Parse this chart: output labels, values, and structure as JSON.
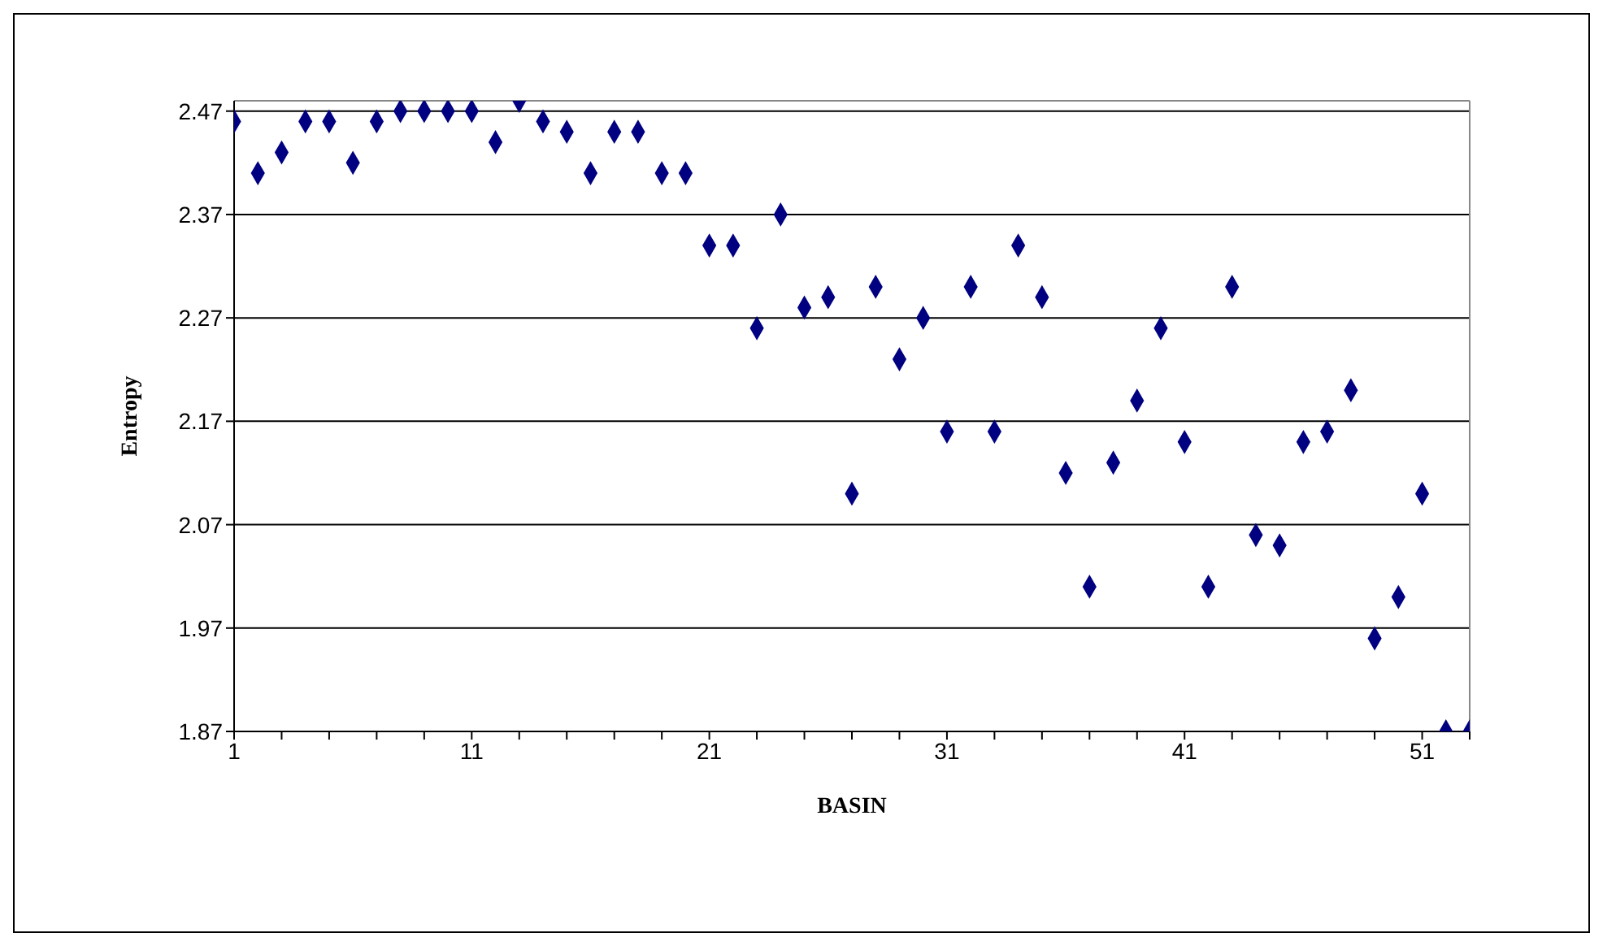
{
  "chart_data": {
    "type": "scatter",
    "xlabel": "BASIN",
    "ylabel": "Entropy",
    "x": [
      1,
      2,
      3,
      4,
      5,
      6,
      7,
      8,
      9,
      10,
      11,
      12,
      13,
      14,
      15,
      16,
      17,
      18,
      19,
      20,
      21,
      22,
      23,
      24,
      25,
      26,
      27,
      28,
      29,
      30,
      31,
      32,
      33,
      34,
      35,
      36,
      37,
      38,
      39,
      40,
      41,
      42,
      43,
      44,
      45,
      46,
      47,
      48,
      49,
      50,
      51,
      52,
      53
    ],
    "values": [
      2.46,
      2.41,
      2.43,
      2.46,
      2.46,
      2.42,
      2.46,
      2.47,
      2.47,
      2.47,
      2.47,
      2.44,
      2.48,
      2.46,
      2.45,
      2.41,
      2.45,
      2.45,
      2.41,
      2.41,
      2.34,
      2.34,
      2.26,
      2.37,
      2.28,
      2.29,
      2.1,
      2.3,
      2.23,
      2.27,
      2.16,
      2.3,
      2.16,
      2.34,
      2.29,
      2.12,
      2.01,
      2.13,
      2.19,
      2.26,
      2.15,
      2.01,
      2.3,
      2.06,
      2.05,
      2.15,
      2.16,
      2.2,
      1.96,
      2.0,
      2.1,
      1.87,
      1.87
    ],
    "color": "#000080",
    "marker": "diamond",
    "xlim": [
      1,
      53
    ],
    "xticks": [
      1,
      {
        "value": 3,
        "label": null
      },
      {
        "value": 5,
        "label": null
      },
      {
        "value": 7,
        "label": null
      },
      {
        "value": 9,
        "label": null
      },
      11,
      {
        "value": 13,
        "label": null
      },
      {
        "value": 15,
        "label": null
      },
      {
        "value": 17,
        "label": null
      },
      {
        "value": 19,
        "label": null
      },
      21,
      {
        "value": 23,
        "label": null
      },
      {
        "value": 25,
        "label": null
      },
      {
        "value": 27,
        "label": null
      },
      {
        "value": 29,
        "label": null
      },
      31,
      {
        "value": 33,
        "label": null
      },
      {
        "value": 35,
        "label": null
      },
      {
        "value": 37,
        "label": null
      },
      {
        "value": 39,
        "label": null
      },
      41,
      {
        "value": 43,
        "label": null
      },
      {
        "value": 45,
        "label": null
      },
      {
        "value": 47,
        "label": null
      },
      {
        "value": 49,
        "label": null
      },
      51,
      {
        "value": 53,
        "label": null
      }
    ],
    "ylim": [
      1.87,
      2.48
    ],
    "yticks": [
      1.87,
      1.97,
      2.07,
      2.17,
      2.27,
      2.37,
      2.47
    ],
    "grid": "y"
  }
}
